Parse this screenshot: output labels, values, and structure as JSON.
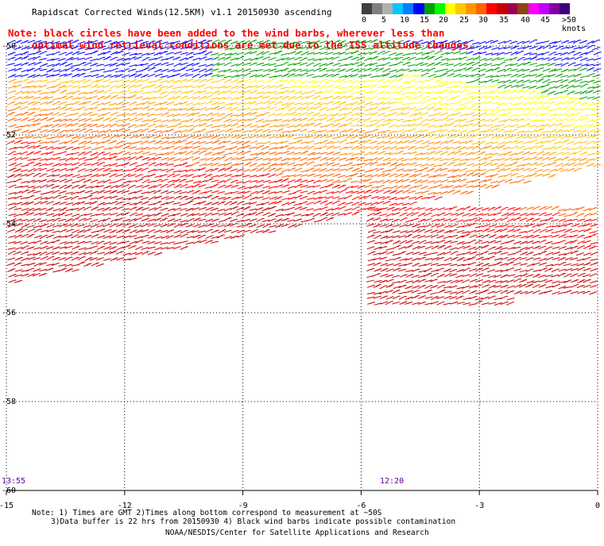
{
  "title": "Rapidscat Corrected Winds(12.5KM) v1.1 20150930 ascending",
  "note": {
    "line1": "Note: black circles have been added to the wind barbs, wherever less than",
    "line2": "optimal wind retrieval conditions are met due to the ISS altitude changes."
  },
  "colorbar": {
    "labels": [
      "0",
      "5",
      "10",
      "15",
      "20",
      "25",
      "30",
      "35",
      "40",
      "45",
      ">50 knots"
    ],
    "colors": [
      "#404040",
      "#808080",
      "#b0b0b0",
      "#00c8ff",
      "#0080ff",
      "#0000ff",
      "#00a000",
      "#00ff00",
      "#ffff00",
      "#ffc800",
      "#ff9600",
      "#ff6400",
      "#ff0000",
      "#c80000",
      "#a00050",
      "#8b4513",
      "#ff00ff",
      "#c000ff",
      "#8000a0",
      "#400080"
    ]
  },
  "axes": {
    "x_ticks": [
      "-15",
      "-12",
      "-9",
      "-6",
      "-3",
      "0"
    ],
    "y_ticks": [
      "-50",
      "-52",
      "-54",
      "-56",
      "-58",
      "-60"
    ]
  },
  "time_labels": [
    "13:55",
    "12:20"
  ],
  "footer": {
    "line1": "Note: 1) Times are GMT 2)Times along bottom correspond to measurement at ~50S",
    "line2": "3)Data buffer is 22 hrs from 20150930 4) Black wind barbs indicate possible contamination",
    "line3": "NOAA/NESDIS/Center for Satellite Applications and Research"
  },
  "map": {
    "lon_range": [
      -15,
      0
    ],
    "lat_range": [
      -60,
      -50
    ],
    "barb_colors_by_band": [
      "#0000ff",
      "#00a000",
      "#ffff00",
      "#ffc800",
      "#ff9600",
      "#ff6400",
      "#ff0000",
      "#c80000"
    ]
  }
}
